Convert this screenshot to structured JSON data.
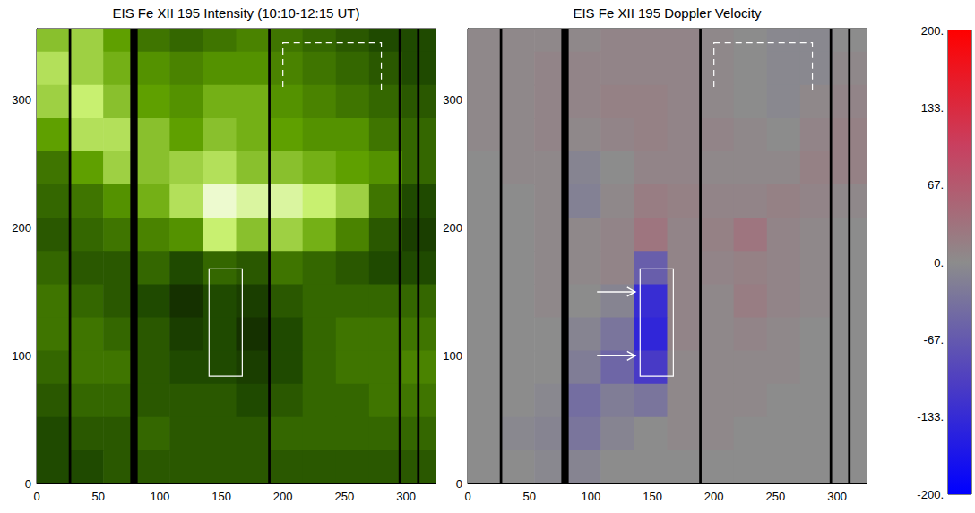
{
  "chart_data": [
    {
      "type": "heatmap",
      "title": "EIS Fe XII 195 Intensity (10:10-12:15 UT)",
      "xlim": [
        0,
        324
      ],
      "xticks": [
        0,
        50,
        100,
        150,
        200,
        250,
        300
      ],
      "ylim": [
        0,
        356
      ],
      "yticks": [
        0,
        100,
        200,
        300
      ],
      "zlim": [
        0,
        100
      ],
      "cells": {
        "x": [
          13.5,
          40.5,
          67.5,
          94.5,
          121.5,
          148.5,
          175.5,
          202.5,
          229.5,
          256.5,
          283.5,
          310.5
        ],
        "y": [
          351,
          325,
          299,
          273,
          247,
          221,
          195,
          169,
          143,
          117,
          91,
          65,
          39,
          13
        ],
        "values": [
          [
            70,
            75,
            60,
            45,
            40,
            45,
            50,
            45,
            40,
            35,
            30,
            30
          ],
          [
            80,
            75,
            65,
            55,
            50,
            55,
            55,
            50,
            45,
            40,
            35,
            30
          ],
          [
            75,
            85,
            70,
            60,
            55,
            65,
            65,
            55,
            50,
            45,
            40,
            35
          ],
          [
            60,
            80,
            80,
            70,
            60,
            70,
            65,
            60,
            55,
            55,
            45,
            40
          ],
          [
            45,
            60,
            75,
            70,
            75,
            80,
            70,
            70,
            65,
            60,
            55,
            40
          ],
          [
            40,
            45,
            55,
            65,
            80,
            95,
            90,
            90,
            85,
            75,
            45,
            30
          ],
          [
            35,
            40,
            45,
            50,
            55,
            85,
            70,
            75,
            65,
            50,
            35,
            25
          ],
          [
            40,
            35,
            35,
            40,
            30,
            40,
            35,
            45,
            40,
            35,
            30,
            30
          ],
          [
            45,
            40,
            35,
            30,
            20,
            30,
            25,
            35,
            40,
            40,
            40,
            40
          ],
          [
            45,
            45,
            40,
            35,
            25,
            30,
            20,
            30,
            40,
            45,
            45,
            45
          ],
          [
            40,
            45,
            45,
            35,
            30,
            30,
            25,
            30,
            40,
            45,
            45,
            50
          ],
          [
            35,
            40,
            40,
            35,
            35,
            35,
            30,
            35,
            40,
            40,
            45,
            45
          ],
          [
            30,
            35,
            35,
            40,
            35,
            35,
            35,
            40,
            40,
            40,
            40,
            40
          ],
          [
            30,
            30,
            35,
            35,
            35,
            35,
            35,
            35,
            35,
            35,
            35,
            35
          ]
        ]
      },
      "gaps": [
        [
          26,
          28
        ],
        [
          76,
          82
        ],
        [
          188,
          190
        ],
        [
          294,
          296
        ],
        [
          309,
          311
        ]
      ],
      "boxes": [
        {
          "x": [
            140,
            167
          ],
          "y": [
            84,
            168
          ],
          "line_style": "solid"
        },
        {
          "x": [
            200,
            280
          ],
          "y": [
            308,
            345
          ],
          "line_style": "dashed"
        }
      ]
    },
    {
      "type": "heatmap",
      "title": "EIS Fe XII 195 Doppler Velocity",
      "xlim": [
        0,
        324
      ],
      "xticks": [
        0,
        50,
        100,
        150,
        200,
        250,
        300
      ],
      "ylim": [
        0,
        356
      ],
      "yticks": [
        0,
        100,
        200,
        300
      ],
      "zlim": [
        -200,
        200
      ],
      "zticks": [
        {
          "value": 200,
          "label": "200."
        },
        {
          "value": 133,
          "label": "133."
        },
        {
          "value": 67,
          "label": "67."
        },
        {
          "value": 0,
          "label": "0."
        },
        {
          "value": -67,
          "label": "-67."
        },
        {
          "value": -133,
          "label": "-133."
        },
        {
          "value": -200,
          "label": "-200."
        }
      ],
      "cells": {
        "x": [
          13.5,
          40.5,
          67.5,
          94.5,
          121.5,
          148.5,
          175.5,
          202.5,
          229.5,
          256.5,
          283.5,
          310.5
        ],
        "y": [
          351,
          325,
          299,
          273,
          247,
          221,
          195,
          169,
          143,
          117,
          91,
          65,
          39,
          13
        ],
        "values": [
          [
            5,
            5,
            5,
            5,
            10,
            10,
            10,
            5,
            0,
            -5,
            -5,
            0
          ],
          [
            5,
            5,
            10,
            10,
            10,
            10,
            10,
            5,
            0,
            -5,
            -5,
            5
          ],
          [
            5,
            5,
            10,
            10,
            15,
            15,
            10,
            5,
            0,
            -5,
            5,
            10
          ],
          [
            5,
            5,
            10,
            5,
            10,
            15,
            10,
            10,
            5,
            0,
            10,
            15
          ],
          [
            0,
            5,
            5,
            -10,
            0,
            10,
            10,
            5,
            5,
            5,
            15,
            15
          ],
          [
            0,
            0,
            5,
            -15,
            5,
            20,
            15,
            10,
            10,
            15,
            10,
            5
          ],
          [
            0,
            0,
            5,
            5,
            10,
            30,
            10,
            15,
            30,
            10,
            5,
            0
          ],
          [
            0,
            0,
            5,
            5,
            10,
            -60,
            10,
            10,
            15,
            10,
            5,
            0
          ],
          [
            0,
            0,
            5,
            0,
            -10,
            -130,
            10,
            5,
            20,
            10,
            5,
            0
          ],
          [
            0,
            0,
            0,
            -10,
            -30,
            -140,
            10,
            5,
            10,
            5,
            0,
            0
          ],
          [
            0,
            0,
            0,
            -20,
            -50,
            -110,
            5,
            5,
            5,
            5,
            0,
            0
          ],
          [
            0,
            0,
            -5,
            -40,
            -20,
            -30,
            5,
            5,
            5,
            0,
            0,
            0
          ],
          [
            0,
            -5,
            -10,
            -30,
            -10,
            0,
            5,
            5,
            0,
            0,
            0,
            0
          ],
          [
            0,
            0,
            -5,
            -10,
            0,
            0,
            0,
            0,
            0,
            0,
            0,
            0
          ]
        ]
      },
      "gaps": [
        [
          26,
          28
        ],
        [
          76,
          82
        ],
        [
          188,
          190
        ],
        [
          294,
          296
        ],
        [
          309,
          311
        ]
      ],
      "boxes": [
        {
          "x": [
            140,
            167
          ],
          "y": [
            84,
            168
          ],
          "line_style": "solid"
        },
        {
          "x": [
            200,
            280
          ],
          "y": [
            308,
            345
          ],
          "line_style": "dashed"
        }
      ],
      "arrows": [
        {
          "from": [
            105,
            150
          ],
          "to": [
            136,
            150
          ]
        },
        {
          "from": [
            105,
            100
          ],
          "to": [
            136,
            100
          ]
        }
      ]
    }
  ]
}
